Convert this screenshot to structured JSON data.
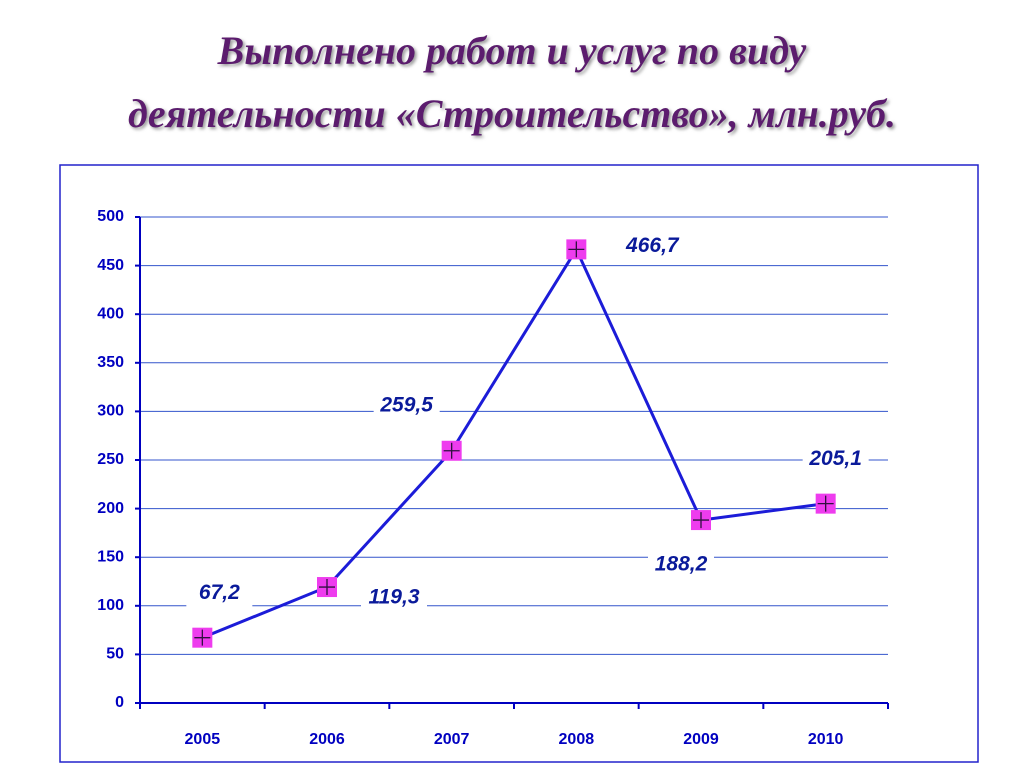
{
  "chart_data": {
    "type": "line",
    "title": [
      "Выполнено работ и услуг по виду",
      "деятельности «Строительство», млн.руб."
    ],
    "categories": [
      "2005",
      "2006",
      "2007",
      "2008",
      "2009",
      "2010"
    ],
    "series": [
      {
        "color": "#1c1cd8",
        "marker_color": "#ee3cee",
        "values": [
          67.2,
          119.3,
          259.5,
          466.7,
          188.2,
          205.1
        ],
        "value_labels": [
          "67,2",
          "119,3",
          "259,5",
          "466,7",
          "188,2",
          "205,1"
        ]
      }
    ],
    "ylim": [
      0,
      500
    ],
    "yticks": [
      0,
      50,
      100,
      150,
      200,
      250,
      300,
      350,
      400,
      450,
      500
    ],
    "grid": true
  }
}
